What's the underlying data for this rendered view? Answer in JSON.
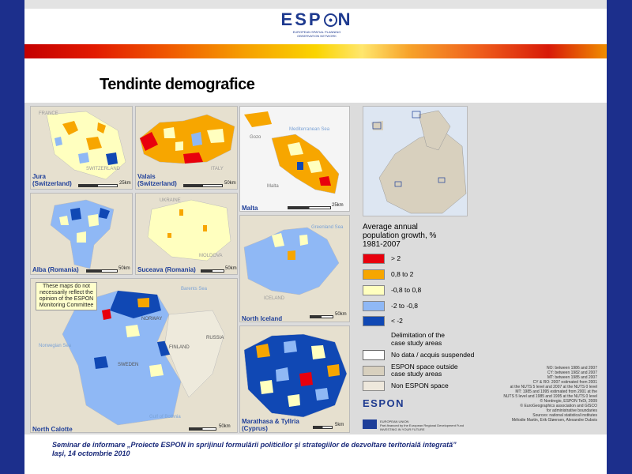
{
  "header": {
    "logo_word": "ESP",
    "logo_word_end": "N",
    "logo_sub_1": "EUROPEAN SPATIAL PLANNING",
    "logo_sub_2": "OBSERVATION NETWORK"
  },
  "slide_title": "Tendinte demografice",
  "maps": [
    {
      "label_1": "Jura",
      "label_2": "(Switzerland)",
      "scale": "25km"
    },
    {
      "label_1": "Valais",
      "label_2": "(Switzerland)",
      "scale": "50km"
    },
    {
      "label_1": "Malta",
      "label_2": "",
      "scale": "25km"
    },
    {
      "label_1": "Alba (Romania)",
      "label_2": "",
      "scale": "50km"
    },
    {
      "label_1": "Suceava (Romania)",
      "label_2": "",
      "scale": "50km"
    },
    {
      "label_1": "North Iceland",
      "label_2": "",
      "scale": "50km"
    },
    {
      "label_1": "North Calotte",
      "label_2": "",
      "scale": "50km"
    },
    {
      "label_1": "Marathasa & Tyllria",
      "label_2": "(Cyprus)",
      "scale": "5km"
    }
  ],
  "map_place_names": {
    "france": "FRANCE",
    "switzerland": "SWITZERLAND",
    "italy": "ITALY",
    "gozo": "Gozo",
    "malta": "Malta",
    "mediterranean": "Mediterranean Sea",
    "ukraine": "UKRAINE",
    "moldova": "MOLDOVA",
    "greenland_sea": "Greenland Sea",
    "iceland": "ICELAND",
    "norway": "NORWAY",
    "sweden": "SWEDEN",
    "finland": "FINLAND",
    "russia": "RUSSIA",
    "barents": "Barents Sea",
    "norwegian_sea": "Norwegian Sea",
    "gulf": "Gulf of Bothnia"
  },
  "note": "These maps do not necessarily reflect the opinion of the ESPON Monitoring Committee",
  "legend": {
    "title_1": "Average annual",
    "title_2": "population growth, %",
    "title_3": "1981-2007",
    "items": [
      {
        "label": "> 2",
        "color": "#e8000d"
      },
      {
        "label": "0,8 to 2",
        "color": "#f7a600"
      },
      {
        "label": "-0,8 to 0,8",
        "color": "#ffffbf"
      },
      {
        "label": "-2 to -0,8",
        "color": "#8fb8f5"
      },
      {
        "label": "< -2",
        "color": "#1048b4"
      }
    ],
    "delim_1": "Delimitation of the",
    "delim_2": "case study areas",
    "extra": [
      {
        "label": "No data / acquis suspended",
        "color": "#ffffff"
      },
      {
        "label_1": "ESPON space outside",
        "label_2": "case study areas",
        "color": "#d8d0be"
      },
      {
        "label": "Non ESPON space",
        "color": "#eee8dc"
      }
    ]
  },
  "credits": [
    "NO: between 1986 and 2007",
    "CY: between 1982 and 2007",
    "MT: between 1985 and 2007",
    "CY & RO: 2007 estimated from 2001",
    "at the NUTS 5 level and 2007 at the NUTS 0 level",
    "MT: 1985 and 1995 estimated from 2001 at the",
    "NUTS 5 level and 1985 and 1995 at the NUTS 0 level",
    "© Nordregio, ESPON TeDi, 2009",
    "© EuroGeographics association and GISCO",
    "for administrative boundaries",
    "Sources: national statistical institutes",
    "Mélodie Martin, Erik Gløersen, Alexandre Dubois"
  ],
  "espon_small": "ESPON",
  "eu_text_1": "EUROPEAN UNION",
  "eu_text_2": "Part-financed by the European Regional Development Fund",
  "eu_text_3": "INVESTING IN YOUR FUTURE",
  "footer": {
    "line_1": "Seminar de informare „Proiecte ESPON în sprijinul formulării politicilor şi strategiilor de dezvoltare teritorială integrată”",
    "line_2": "Iaşi, 14 octombrie 2010"
  }
}
